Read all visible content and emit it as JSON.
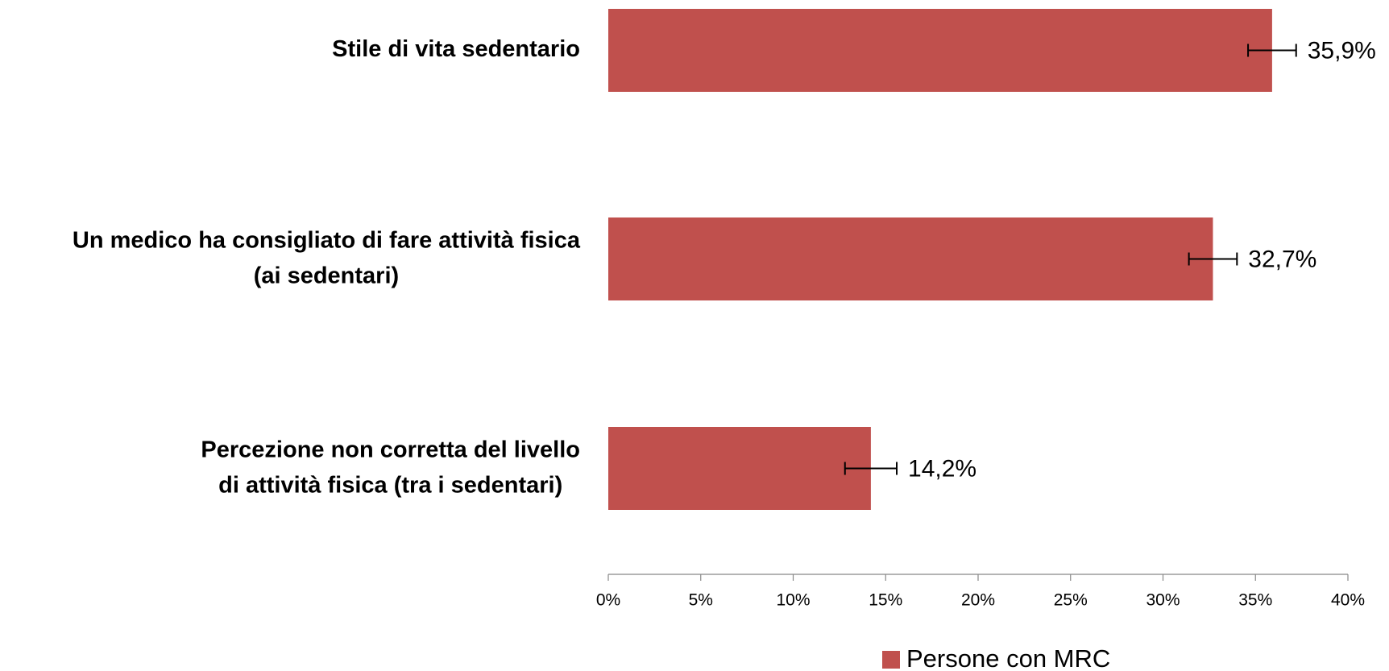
{
  "chart_data": {
    "type": "hbar",
    "categories": [
      "Stile di vita sedentario",
      "Un medico ha consigliato di fare attività fisica\n(ai sedentari)",
      "Percezione non corretta del livello\ndi attività fisica (tra i sedentari)"
    ],
    "series": [
      {
        "name": "Persone con MRC",
        "color": "#c0504d",
        "values": [
          35.9,
          32.7,
          14.2
        ],
        "errors": [
          1.3,
          1.3,
          1.4
        ],
        "value_labels": [
          "35,9%",
          "32,7%",
          "14,2%"
        ]
      }
    ],
    "xlim": [
      0,
      40
    ],
    "xticks": [
      {
        "value": 0,
        "label": "0%"
      },
      {
        "value": 5,
        "label": "5%"
      },
      {
        "value": 10,
        "label": "10%"
      },
      {
        "value": 15,
        "label": "15%"
      },
      {
        "value": 20,
        "label": "20%"
      },
      {
        "value": 25,
        "label": "25%"
      },
      {
        "value": 30,
        "label": "30%"
      },
      {
        "value": 35,
        "label": "35%"
      },
      {
        "value": 40,
        "label": "40%"
      }
    ],
    "legend": "bottom"
  }
}
